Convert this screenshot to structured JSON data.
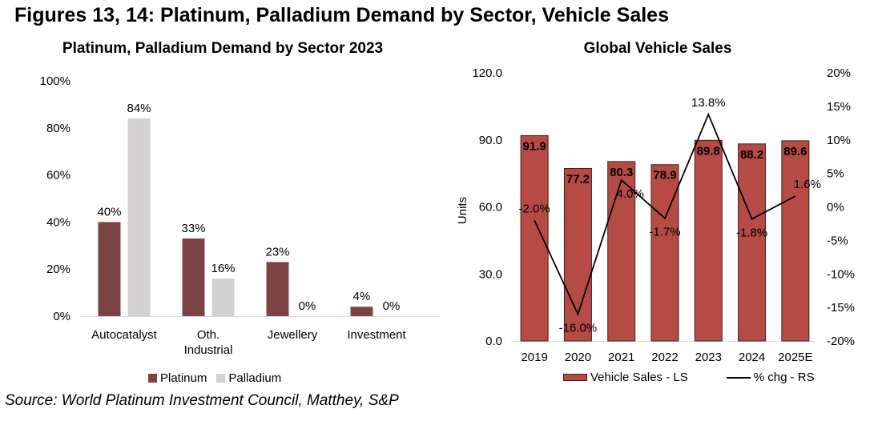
{
  "page": {
    "title": "Figures 13, 14: Platinum, Palladium Demand by Sector, Vehicle Sales",
    "source": "Source: World Platinum Investment Council, Matthey, S&P"
  },
  "colors": {
    "platinum": "#7C4345",
    "palladium": "#D3D1D1",
    "vehicle_bar": "#B64A45",
    "vehicle_bar_outline": "#471F1D",
    "line": "#000000",
    "axis_line": "#D9D9D9",
    "text": "#000000"
  },
  "chart_data": [
    {
      "type": "bar",
      "title": "Platinum, Palladium Demand by Sector 2023",
      "categories": [
        "Autocatalyst",
        "Oth.\nIndustrial",
        "Jewellery",
        "Investment"
      ],
      "series": [
        {
          "name": "Platinum",
          "color": "#7C4345",
          "values": [
            40,
            33,
            23,
            4
          ],
          "labels": [
            "40%",
            "33%",
            "23%",
            "4%"
          ]
        },
        {
          "name": "Palladium",
          "color": "#D3D1D1",
          "values": [
            84,
            16,
            0,
            0
          ],
          "labels": [
            "84%",
            "16%",
            "0%",
            "0%"
          ]
        }
      ],
      "ylim": [
        0,
        100
      ],
      "y_ticks": [
        {
          "value": 0,
          "label": "0%"
        },
        {
          "value": 20,
          "label": "20%"
        },
        {
          "value": 40,
          "label": "40%"
        },
        {
          "value": 60,
          "label": "60%"
        },
        {
          "value": 80,
          "label": "80%"
        },
        {
          "value": 100,
          "label": "100%"
        }
      ],
      "grid": false,
      "legend_position": "bottom"
    },
    {
      "type": "bar-line",
      "title": "Global Vehicle Sales",
      "ylabel": "Units",
      "categories": [
        "2019",
        "2020",
        "2021",
        "2022",
        "2023",
        "2024",
        "2025E"
      ],
      "bar_series": {
        "name": "Vehicle Sales - LS",
        "axis": "left",
        "color": "#B64A45",
        "values": [
          91.9,
          77.2,
          80.3,
          78.9,
          89.8,
          88.2,
          89.6
        ],
        "labels": [
          "91.9",
          "77.2",
          "80.3",
          "78.9",
          "89.8",
          "88.2",
          "89.6"
        ]
      },
      "line_series": {
        "name": "% chg - RS",
        "axis": "right",
        "color": "#000000",
        "values": [
          -2.0,
          -16.0,
          4.0,
          -1.7,
          13.8,
          -1.8,
          1.6
        ],
        "labels": [
          "-2.0%",
          "-16.0%",
          "4.0%",
          "-1.7%",
          "13.8%",
          "-1.8%",
          "1.6%"
        ],
        "label_sides": [
          "above",
          "below",
          "below",
          "below",
          "above",
          "below",
          "above"
        ],
        "label_dx": [
          0,
          0,
          11,
          0,
          0,
          0,
          15
        ]
      },
      "ylim_left": [
        0,
        120
      ],
      "left_ticks": [
        {
          "value": 0,
          "label": "0.0"
        },
        {
          "value": 30,
          "label": "30.0"
        },
        {
          "value": 60,
          "label": "60.0"
        },
        {
          "value": 90,
          "label": "90.0"
        },
        {
          "value": 120,
          "label": "120.0"
        }
      ],
      "ylim_right": [
        -20,
        20
      ],
      "right_ticks": [
        {
          "value": -20,
          "label": "-20%"
        },
        {
          "value": -15,
          "label": "-15%"
        },
        {
          "value": -10,
          "label": "-10%"
        },
        {
          "value": -5,
          "label": "-5%"
        },
        {
          "value": 0,
          "label": "0%"
        },
        {
          "value": 5,
          "label": "5%"
        },
        {
          "value": 10,
          "label": "10%"
        },
        {
          "value": 15,
          "label": "15%"
        },
        {
          "value": 20,
          "label": "20%"
        }
      ],
      "grid": false,
      "legend_position": "bottom"
    }
  ]
}
